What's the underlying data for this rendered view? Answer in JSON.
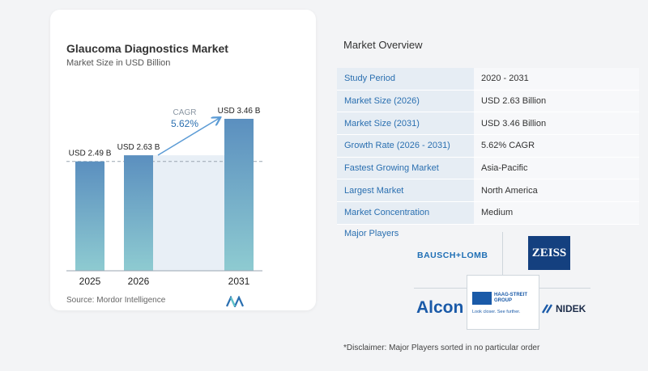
{
  "chart": {
    "title": "Glaucoma Diagnostics Market",
    "subtitle": "Market Size in USD Billion",
    "source": "Source: Mordor Intelligence",
    "cagr_label": "CAGR",
    "cagr_value": "5.62%"
  },
  "chart_data": {
    "type": "bar",
    "title": "Glaucoma Diagnostics Market",
    "subtitle": "Market Size in USD Billion",
    "categories": [
      "2025",
      "2026",
      "2031"
    ],
    "values": [
      2.49,
      2.63,
      3.46
    ],
    "data_labels": [
      "USD 2.49 B",
      "USD 2.63 B",
      "USD 3.46 B"
    ],
    "ylim": [
      0,
      3.6
    ],
    "annotation": "CAGR 5.62%",
    "colors": {
      "bar_top": "#5b8fbf",
      "bar_bottom": "#8ecbd1",
      "shade": "#e8eff6",
      "arrow": "#5b9bd5"
    }
  },
  "overview": {
    "title": "Market Overview",
    "rows": [
      {
        "key": "Study Period",
        "value": "2020 - 2031"
      },
      {
        "key": "Market Size (2026)",
        "value": "USD 2.63 Billion"
      },
      {
        "key": "Market Size (2031)",
        "value": "USD 3.46 Billion"
      },
      {
        "key": "Growth Rate (2026 - 2031)",
        "value": "5.62% CAGR"
      },
      {
        "key": "Fastest Growing Market",
        "value": "Asia-Pacific"
      },
      {
        "key": "Largest Market",
        "value": "North America"
      },
      {
        "key": "Market Concentration",
        "value": "Medium"
      }
    ]
  },
  "players": {
    "label": "Major Players",
    "logos": [
      "BAUSCH+LOMB",
      "ZEISS",
      "Alcon",
      "HAAG-STREIT GROUP",
      "NIDEK"
    ],
    "haag_tagline": "Look closer. See further.",
    "haag_line1": "HAAG-STREIT",
    "haag_line2": "GROUP"
  },
  "disclaimer": "*Disclaimer: Major Players sorted in no particular order"
}
